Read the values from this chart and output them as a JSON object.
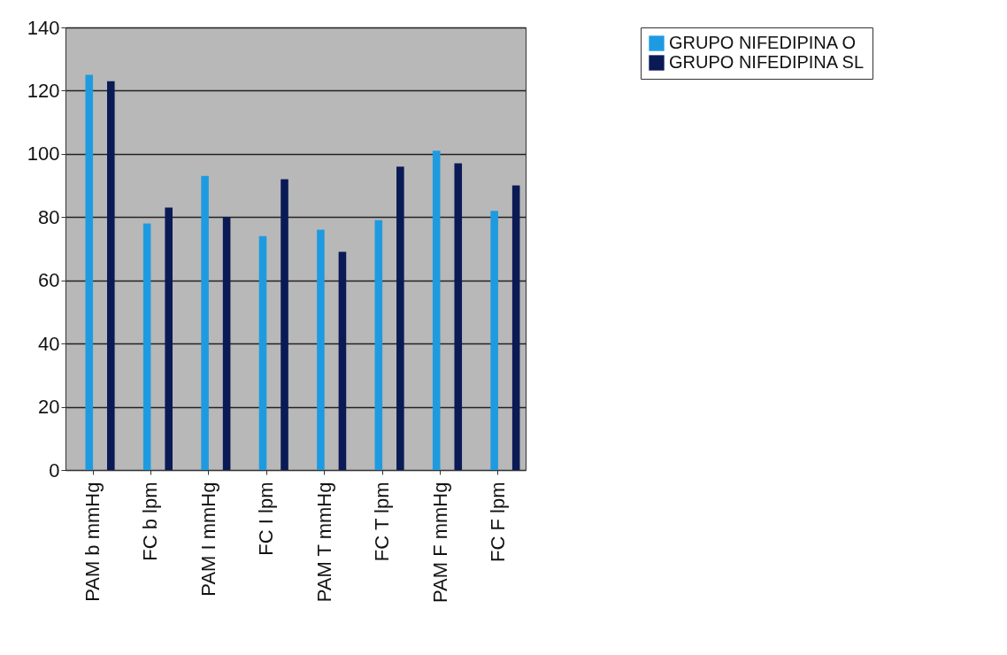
{
  "chart_data": {
    "type": "bar",
    "categories": [
      "PAM b mmHg",
      "FC b lpm",
      "PAM I mmHg",
      "FC I lpm",
      "PAM T mmHg",
      "FC T lpm",
      "PAM F mmHg",
      "FC F lpm"
    ],
    "series": [
      {
        "name": "GRUPO NIFEDIPINA O",
        "color": "#1e9be0",
        "values": [
          125,
          78,
          93,
          74,
          76,
          79,
          101,
          82
        ]
      },
      {
        "name": "GRUPO NIFEDIPINA SL",
        "color": "#0a1a55",
        "values": [
          123,
          83,
          80,
          92,
          69,
          96,
          97,
          90
        ]
      }
    ],
    "ylim": [
      0,
      140
    ],
    "yticks": [
      0,
      20,
      40,
      60,
      80,
      100,
      120,
      140
    ],
    "grid": "y",
    "legend": "right"
  }
}
